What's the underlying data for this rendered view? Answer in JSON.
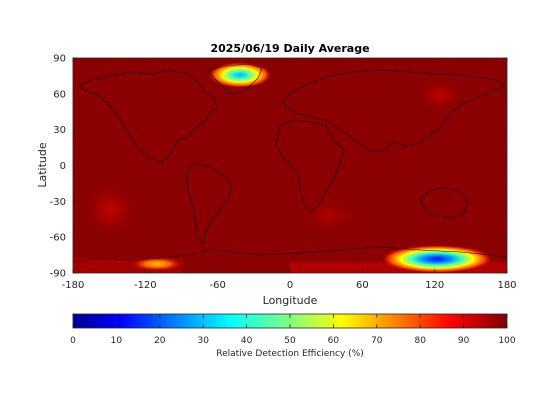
{
  "chart_data": {
    "type": "heatmap",
    "title": "2025/06/19 Daily Average",
    "xlabel": "Longitude",
    "ylabel": "Latitude",
    "xlim": [
      -180,
      180
    ],
    "ylim": [
      -90,
      90
    ],
    "x_ticks": [
      -180,
      -120,
      -60,
      0,
      60,
      120,
      180
    ],
    "y_ticks": [
      90,
      60,
      30,
      0,
      -30,
      -60,
      -90
    ],
    "background_value": 97,
    "features": [
      {
        "region": "Greenland",
        "lon": -40,
        "lat": 76,
        "min_value": 40
      },
      {
        "region": "East Antarctica",
        "lon": 125,
        "lat": -77,
        "min_value": 15
      },
      {
        "region": "West Antarctica",
        "lon": -110,
        "lat": -81,
        "min_value": 75
      }
    ],
    "colorbar": {
      "label": "Relative Detection Efficiency (%)",
      "range": [
        0,
        100
      ],
      "ticks": [
        0,
        10,
        20,
        30,
        40,
        50,
        60,
        70,
        80,
        90,
        100
      ],
      "colormap": "jet"
    },
    "colors": {
      "background": "#8b0000",
      "coastline": "#000000"
    }
  }
}
